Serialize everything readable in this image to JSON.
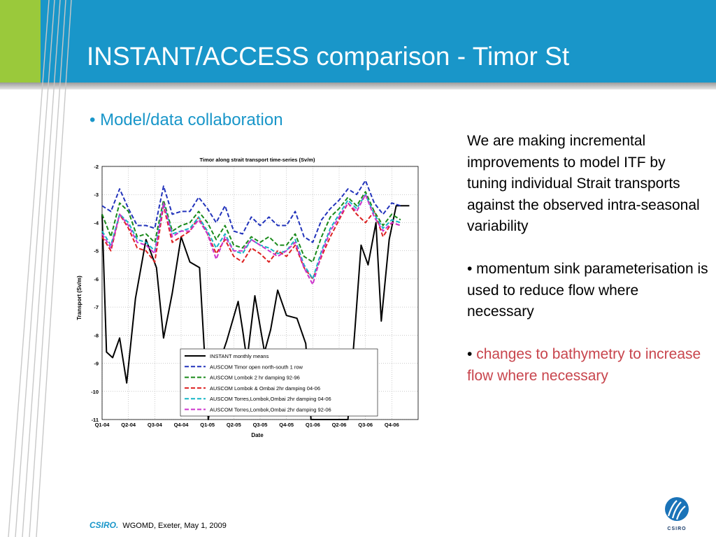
{
  "slide": {
    "title": "INSTANT/ACCESS comparison - Timor St",
    "bullet": "• Model/data collaboration",
    "paragraphs": [
      "We are making incremental improvements to model ITF by tuning individual Strait transports against the observed intra-seasonal variability",
      "• momentum sink parameterisation is used to reduce flow where necessary"
    ],
    "bullet3_prefix": "• ",
    "bullet3_highlight": "changes to bathymetry to increase flow where necessary"
  },
  "footer": {
    "brand": "CSIRO.",
    "text": "WGOMD, Exeter, May 1, 2009"
  },
  "logo": {
    "text": "CSIRO"
  },
  "colors": {
    "header": "#1996c9",
    "accent_green": "#9ac93b",
    "highlight_red": "#c8454d"
  },
  "chart_data": {
    "type": "line",
    "title": "Timor along strait transport time-series (Sv/m)",
    "xlabel": "Date",
    "ylabel": "Transport (Sv/m)",
    "ylim": [
      -11,
      -2
    ],
    "yticks": [
      -2,
      -3,
      -4,
      -5,
      -6,
      -7,
      -8,
      -9,
      -10,
      -11
    ],
    "xlim": [
      0,
      36
    ],
    "xticks": [
      {
        "x": 0,
        "label": "Q1-04"
      },
      {
        "x": 3,
        "label": "Q2-04"
      },
      {
        "x": 6,
        "label": "Q3-04"
      },
      {
        "x": 9,
        "label": "Q4-04"
      },
      {
        "x": 12,
        "label": "Q1-05"
      },
      {
        "x": 15,
        "label": "Q2-05"
      },
      {
        "x": 18,
        "label": "Q3-05"
      },
      {
        "x": 21,
        "label": "Q4-05"
      },
      {
        "x": 24,
        "label": "Q1-06"
      },
      {
        "x": 27,
        "label": "Q2-06"
      },
      {
        "x": 30,
        "label": "Q3-06"
      },
      {
        "x": 33,
        "label": "Q4-06"
      }
    ],
    "grid": true,
    "legend_position": "bottom-right",
    "series": [
      {
        "name": "INSTANT monthly means",
        "color": "#000000",
        "dash": "",
        "x": [
          0,
          0.5,
          1.2,
          2.0,
          2.8,
          3.8,
          5.0,
          6.2,
          7.0,
          8.0,
          9.0,
          10.0,
          11.1,
          12.1,
          13.0,
          14.2,
          15.5,
          16.0,
          16.5,
          17.4,
          18.5,
          19.2,
          20.0,
          21.0,
          22.2,
          23.2,
          23.8,
          24.6,
          25.0,
          27.0,
          28.0,
          28.8,
          29.5,
          30.3,
          31.2,
          31.8,
          32.7,
          33.5,
          34.0,
          35.0
        ],
        "y": [
          -3.7,
          -8.6,
          -8.8,
          -8.1,
          -9.7,
          -6.7,
          -4.6,
          -5.6,
          -8.1,
          -6.5,
          -4.5,
          -5.4,
          -5.6,
          -11,
          -9.3,
          -8.2,
          -6.8,
          -7.8,
          -8.9,
          -6.6,
          -8.6,
          -7.8,
          -6.4,
          -7.3,
          -7.4,
          -8.3,
          -11,
          -11,
          -11,
          -11,
          -11,
          -7.8,
          -4.8,
          -5.5,
          -4.0,
          -7.5,
          -4.6,
          -3.4,
          -3.4,
          -3.4
        ]
      },
      {
        "name": "AUSCOM Timor open north-south 1 row",
        "color": "#2233bb",
        "dash": "6,3",
        "x": [
          0,
          1,
          2,
          3,
          4,
          5,
          6,
          7,
          8,
          9,
          10,
          11,
          12,
          13,
          14,
          15,
          16,
          17,
          18,
          19,
          20,
          21,
          22,
          23,
          24,
          25,
          26,
          27,
          28,
          29,
          30,
          31,
          32,
          33,
          34
        ],
        "y": [
          -3.4,
          -3.6,
          -2.8,
          -3.5,
          -4.1,
          -4.1,
          -4.2,
          -2.7,
          -3.7,
          -3.6,
          -3.6,
          -3.1,
          -3.5,
          -4.0,
          -3.4,
          -4.3,
          -4.4,
          -3.8,
          -4.1,
          -3.8,
          -4.1,
          -4.1,
          -3.6,
          -4.5,
          -4.7,
          -3.9,
          -3.5,
          -3.2,
          -2.8,
          -3.0,
          -2.5,
          -3.3,
          -3.7,
          -3.3,
          -3.4
        ]
      },
      {
        "name": "AUSCOM Lombok 2 hr damping 92-96",
        "color": "#1a8a1a",
        "dash": "6,3",
        "x": [
          0,
          1,
          2,
          3,
          4,
          5,
          6,
          7,
          8,
          9,
          10,
          11,
          12,
          13,
          14,
          15,
          16,
          17,
          18,
          19,
          20,
          21,
          22,
          23,
          24,
          25,
          26,
          27,
          28,
          29,
          30,
          31,
          32,
          33,
          34
        ],
        "y": [
          -3.7,
          -4.5,
          -3.3,
          -3.6,
          -4.5,
          -4.4,
          -4.7,
          -3.2,
          -4.3,
          -4.1,
          -4.0,
          -3.6,
          -4.0,
          -4.6,
          -4.1,
          -4.8,
          -4.9,
          -4.5,
          -4.7,
          -4.5,
          -4.8,
          -4.8,
          -4.4,
          -5.2,
          -5.4,
          -4.5,
          -3.8,
          -3.5,
          -3.1,
          -3.4,
          -2.9,
          -3.6,
          -4.1,
          -3.7,
          -3.9
        ]
      },
      {
        "name": "AUSCOM Lombok & Ombai 2hr damping 04-06",
        "color": "#dd2222",
        "dash": "6,3",
        "x": [
          0,
          1,
          2,
          3,
          4,
          5,
          6,
          7,
          8,
          9,
          10,
          11,
          12,
          13,
          14,
          15,
          16,
          17,
          18,
          19,
          20,
          21,
          22,
          23,
          24,
          25,
          26,
          27,
          28,
          29,
          30,
          31,
          32,
          33,
          34
        ],
        "y": [
          -4.5,
          -5.0,
          -3.7,
          -4.2,
          -4.9,
          -5.0,
          -5.4,
          -3.4,
          -4.7,
          -4.5,
          -4.3,
          -3.8,
          -4.4,
          -5.1,
          -4.6,
          -5.2,
          -5.4,
          -4.9,
          -5.1,
          -5.4,
          -5.0,
          -5.2,
          -4.8,
          -5.6,
          -6.0,
          -5.2,
          -4.5,
          -3.9,
          -3.3,
          -3.7,
          -4.0,
          -3.6,
          -4.5,
          -4.0,
          -4.1
        ]
      },
      {
        "name": "AUSCOM Torres,Lombok,Ombai 2hr damping 04-06",
        "color": "#17b5c5",
        "dash": "6,3",
        "x": [
          0,
          1,
          2,
          3,
          4,
          5,
          6,
          7,
          8,
          9,
          10,
          11,
          12,
          13,
          14,
          15,
          16,
          17,
          18,
          19,
          20,
          21,
          22,
          23,
          24,
          25,
          26,
          27,
          28,
          29,
          30,
          31,
          32,
          33,
          34
        ],
        "y": [
          -4.3,
          -4.8,
          -3.7,
          -4.0,
          -4.6,
          -4.7,
          -5.0,
          -3.3,
          -4.4,
          -4.3,
          -4.2,
          -3.8,
          -4.3,
          -4.9,
          -4.4,
          -5.0,
          -5.1,
          -4.6,
          -4.8,
          -4.9,
          -5.1,
          -5.0,
          -4.6,
          -5.5,
          -6.0,
          -5.0,
          -4.2,
          -3.7,
          -3.2,
          -3.5,
          -3.0,
          -3.7,
          -4.2,
          -3.9,
          -4.0
        ]
      },
      {
        "name": "AUSCOM Torres,Lombok,Ombai 2hr damping 92-06",
        "color": "#cc33cc",
        "dash": "6,3",
        "x": [
          0,
          1,
          2,
          3,
          4,
          5,
          6,
          7,
          8,
          9,
          10,
          11,
          12,
          13,
          14,
          15,
          16,
          17,
          18,
          19,
          20,
          21,
          22,
          23,
          24,
          25,
          26,
          27,
          28,
          29,
          30,
          31,
          32,
          33,
          34
        ],
        "y": [
          -4.4,
          -4.9,
          -3.7,
          -4.1,
          -4.7,
          -4.8,
          -5.1,
          -3.3,
          -4.5,
          -4.3,
          -4.3,
          -3.9,
          -4.4,
          -5.3,
          -4.5,
          -5.0,
          -5.0,
          -4.6,
          -4.8,
          -5.0,
          -5.2,
          -5.0,
          -4.7,
          -5.6,
          -6.2,
          -5.1,
          -4.3,
          -3.8,
          -3.3,
          -3.6,
          -3.0,
          -3.8,
          -4.3,
          -4.0,
          -4.1
        ]
      }
    ]
  }
}
